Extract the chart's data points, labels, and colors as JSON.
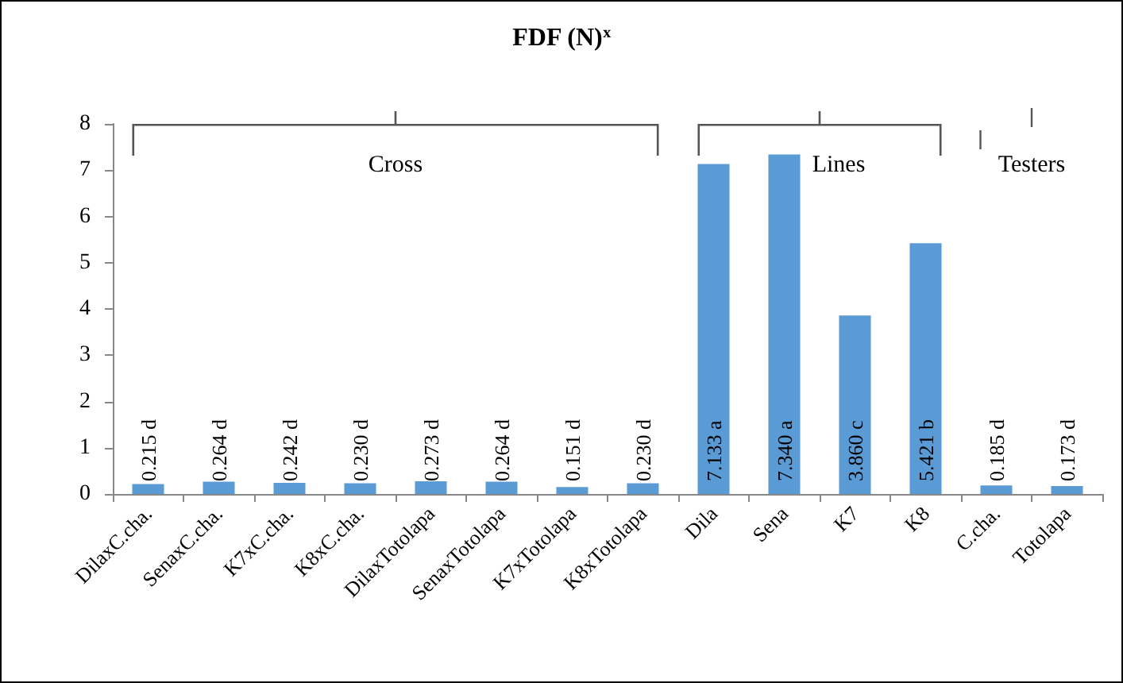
{
  "chart_data": {
    "type": "bar",
    "title": "FDF (N)$^{x}$",
    "categories": [
      "DilaxC.cha.",
      "SenaxC.cha.",
      "K7xC.cha.",
      "K8xC.cha.",
      "DilaxTotolapa",
      "SenaxTotolapa",
      "K7xTotolapa",
      "K8xTotolapa",
      "Dila",
      "Sena",
      "K7",
      "K8",
      "C.cha.",
      "Totolapa"
    ],
    "values": [
      0.215,
      0.264,
      0.242,
      0.23,
      0.273,
      0.264,
      0.151,
      0.23,
      7.133,
      7.34,
      3.86,
      5.421,
      0.185,
      0.173
    ],
    "value_labels": [
      "0.215 d",
      "0.264 d",
      "0.242 d",
      "0.230 d",
      "0.273 d",
      "0.264 d",
      "0.151 d",
      "0.230 d",
      "7.133 a",
      "7.340 a",
      "3.860 c",
      "5.421 b",
      "0.185 d",
      "0.173 d"
    ],
    "color": "#5b9bd5",
    "ylim": [
      0,
      8
    ],
    "yticks": [
      0,
      1,
      2,
      3,
      4,
      5,
      6,
      7,
      8
    ],
    "grid": false,
    "annotations": [
      "Cross",
      "Lines",
      "Testers"
    ]
  }
}
